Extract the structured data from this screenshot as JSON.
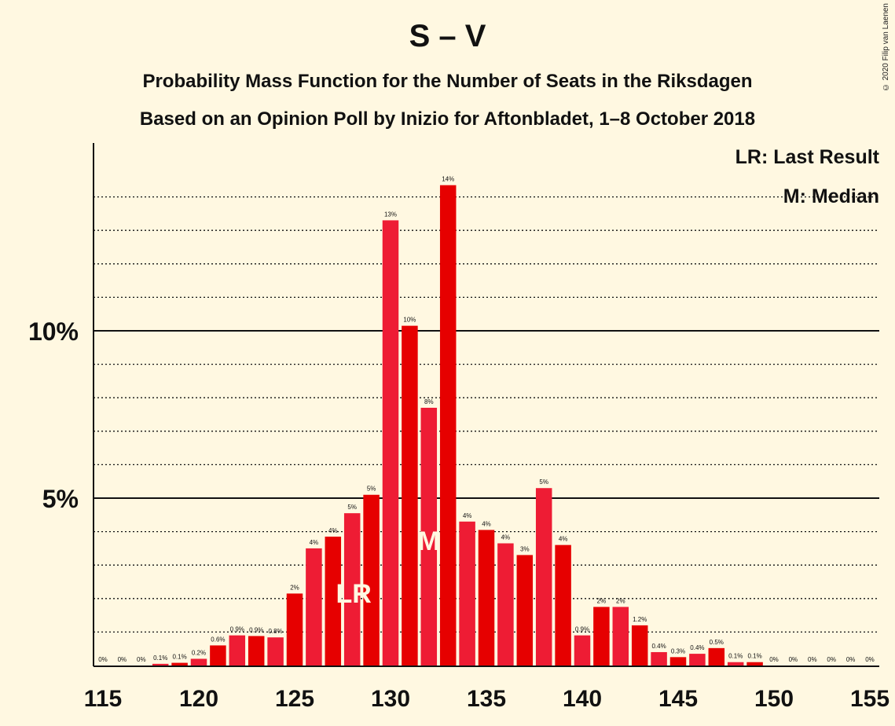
{
  "header": {
    "title": "S – V",
    "subtitle1": "Probability Mass Function for the Number of Seats in the Riksdagen",
    "subtitle2": "Based on an Opinion Poll by Inizio for Aftonbladet, 1–8 October 2018",
    "copyright": "© 2020 Filip van Laenen"
  },
  "legend": {
    "last_result": "LR: Last Result",
    "median": "M: Median"
  },
  "colors": {
    "background": "#FFF8E1",
    "bar_dark": "#E60000",
    "bar_light": "#EE1C34"
  },
  "chart_data": {
    "type": "bar",
    "x": [
      115,
      116,
      117,
      118,
      119,
      120,
      121,
      122,
      123,
      124,
      125,
      126,
      127,
      128,
      129,
      130,
      131,
      132,
      133,
      134,
      135,
      136,
      137,
      138,
      139,
      140,
      141,
      142,
      143,
      144,
      145,
      146,
      147,
      148,
      149,
      150,
      151,
      152,
      153,
      154,
      155
    ],
    "values": [
      0,
      0,
      0,
      0.1,
      0.1,
      0.2,
      0.6,
      0.9,
      0.9,
      0.8,
      2,
      4,
      4,
      5,
      5,
      13,
      10,
      8,
      14,
      4,
      4,
      4,
      3,
      5,
      4,
      0.9,
      2,
      2,
      1.2,
      0.4,
      0.3,
      0.4,
      0.5,
      0.1,
      0.1,
      0,
      0,
      0,
      0,
      0,
      0
    ],
    "estimated_heights": [
      0,
      0,
      0,
      0.05,
      0.08,
      0.2,
      0.6,
      0.9,
      0.88,
      0.84,
      2.15,
      3.5,
      3.85,
      4.55,
      5.1,
      13.3,
      10.15,
      7.7,
      14.35,
      4.3,
      4.05,
      3.65,
      3.3,
      5.3,
      3.6,
      0.9,
      1.75,
      1.75,
      1.2,
      0.4,
      0.25,
      0.35,
      0.52,
      0.1,
      0.1,
      0,
      0,
      0,
      0,
      0,
      0
    ],
    "data_labels": [
      "0%",
      "0%",
      "0%",
      "0.1%",
      "0.1%",
      "0.2%",
      "0.6%",
      "0.9%",
      "0.9%",
      "0.8%",
      "2%",
      "4%",
      "4%",
      "5%",
      "5%",
      "13%",
      "10%",
      "8%",
      "14%",
      "4%",
      "4%",
      "4%",
      "3%",
      "5%",
      "4%",
      "0.9%",
      "2%",
      "2%",
      "1.2%",
      "0.4%",
      "0.3%",
      "0.4%",
      "0.5%",
      "0.1%",
      "0.1%",
      "0%",
      "0%",
      "0%",
      "0%",
      "0%",
      "0%"
    ],
    "y_ticks": [
      {
        "value": 5,
        "label": "5%"
      },
      {
        "value": 10,
        "label": "10%"
      }
    ],
    "x_ticks": [
      115,
      120,
      125,
      130,
      135,
      140,
      145,
      150,
      155
    ],
    "ylim": [
      0,
      15.5
    ],
    "last_result": {
      "x": 128,
      "label": "LR"
    },
    "median": {
      "x": 132,
      "label": "M"
    },
    "grid": "dotted every 1%, solid at 5% and 10%"
  }
}
